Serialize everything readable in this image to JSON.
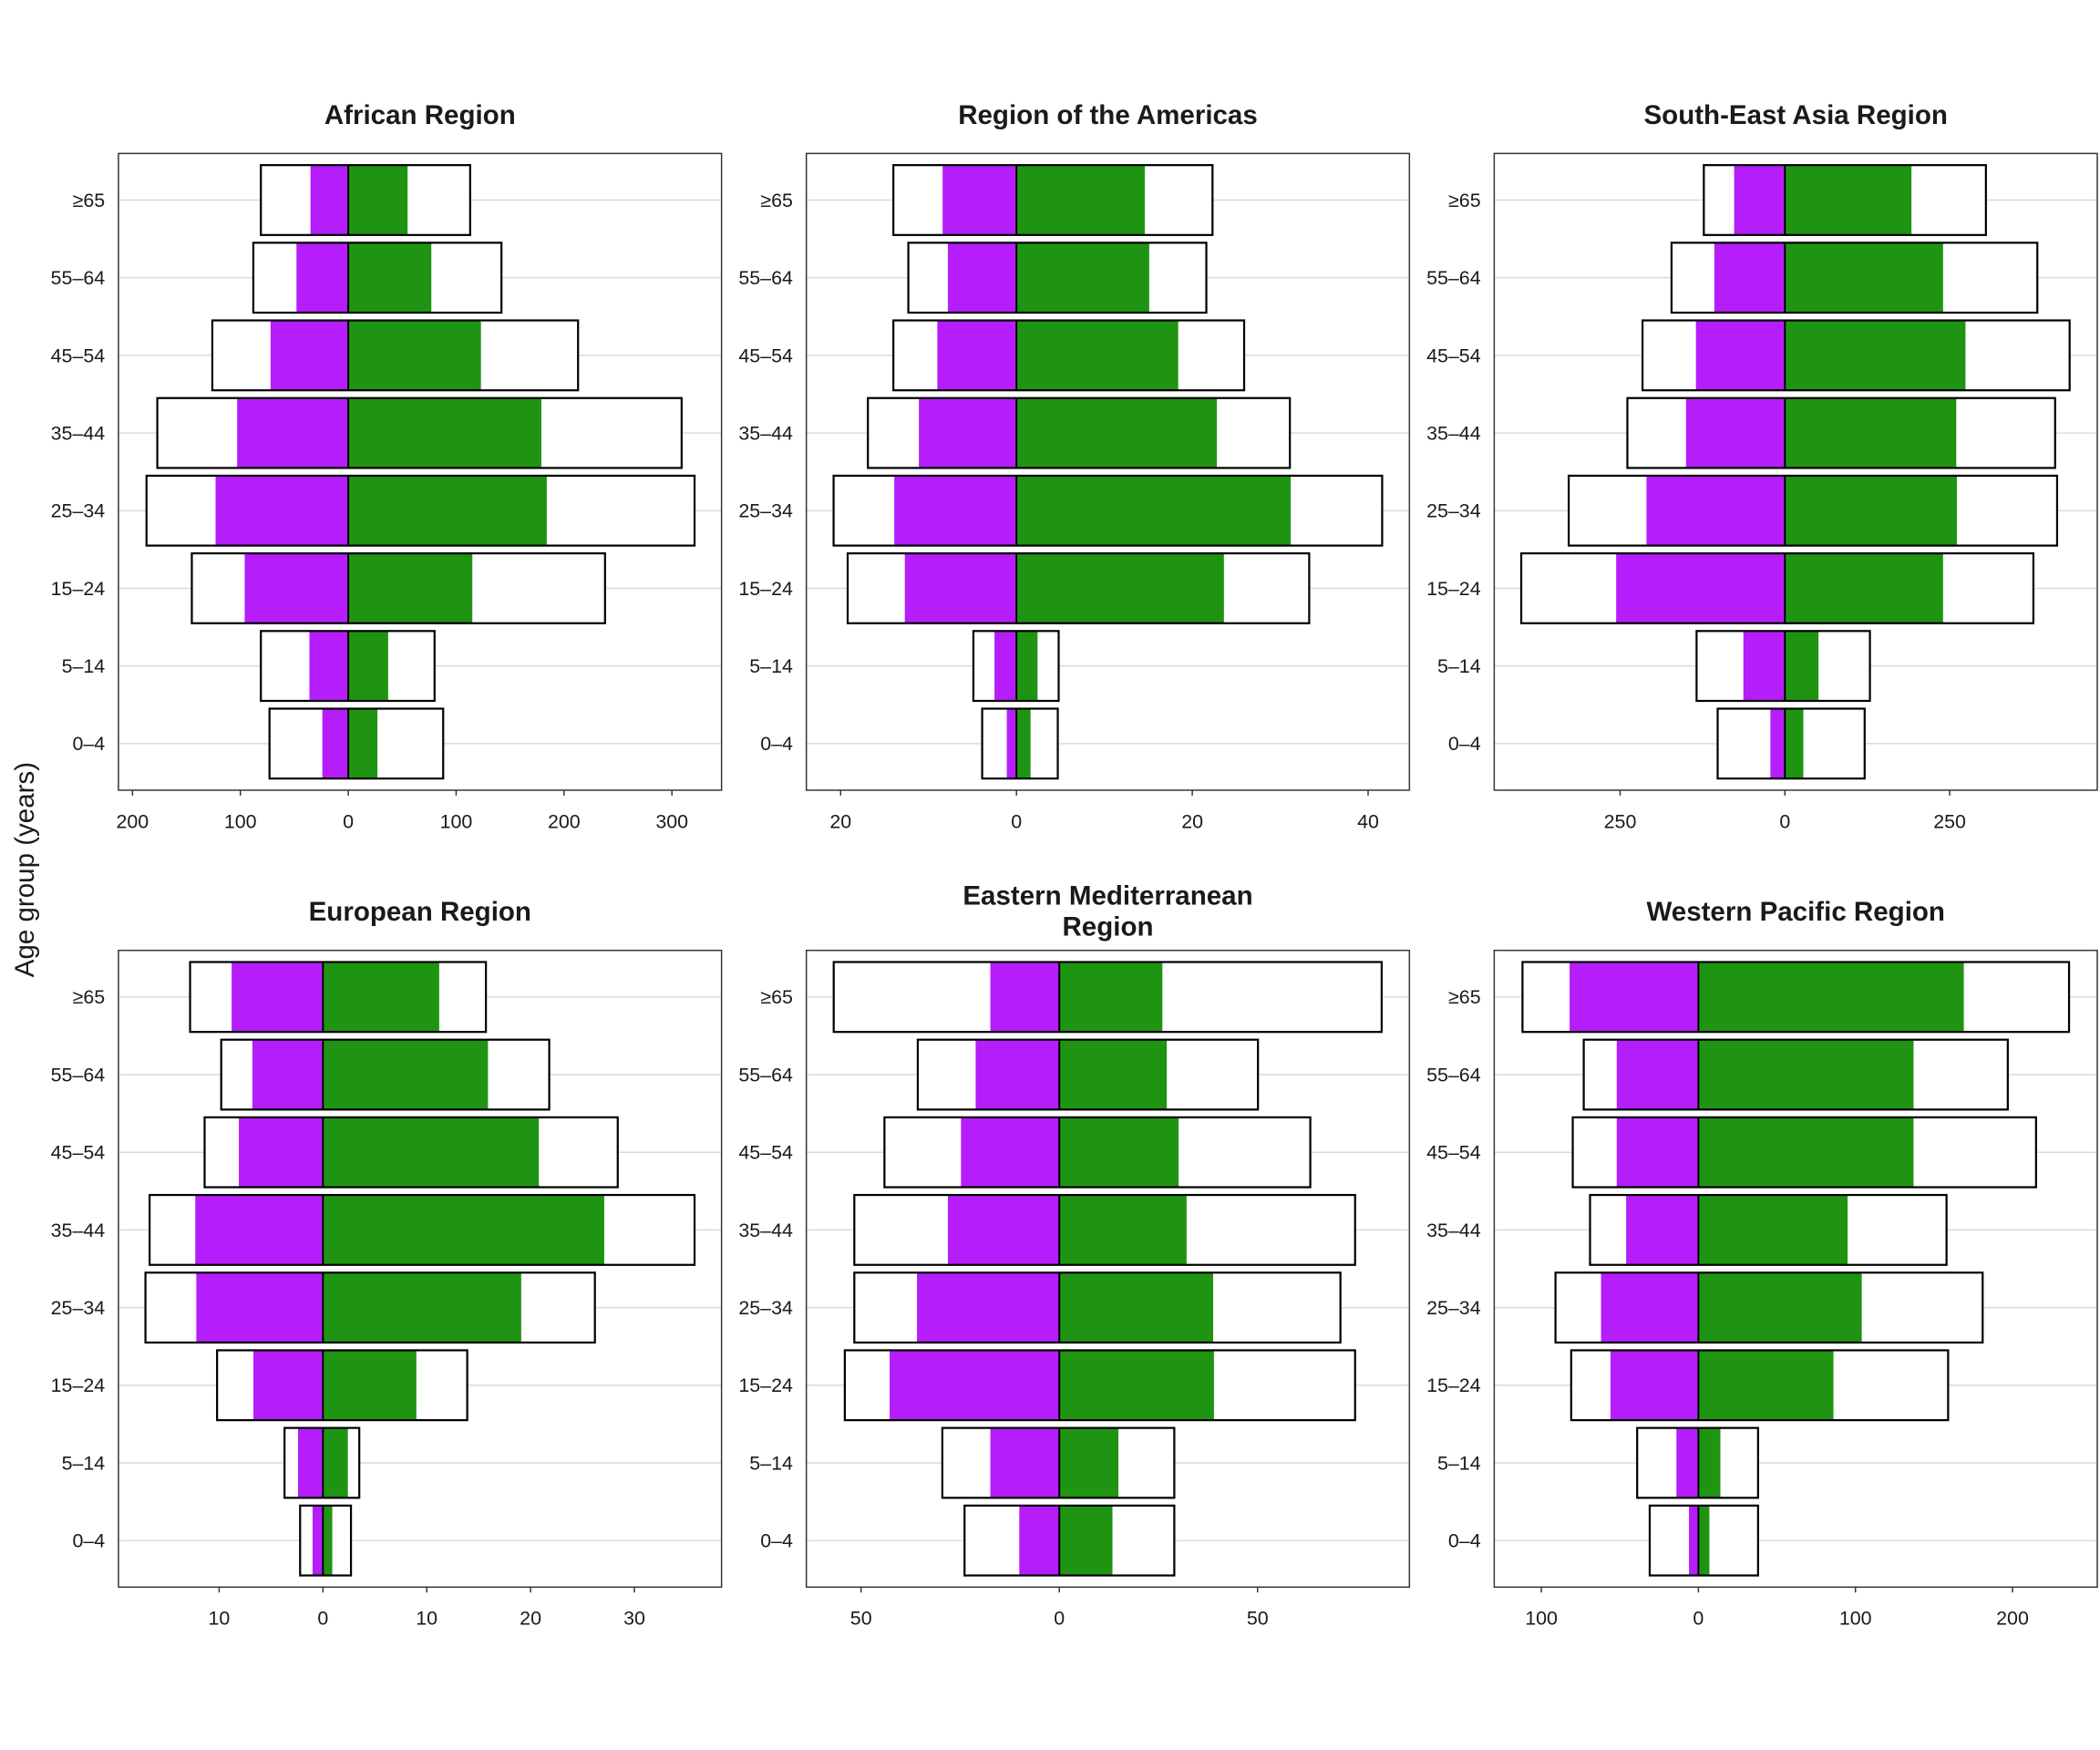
{
  "chart_data": {
    "type": "bar",
    "subtype": "population-pyramid-small-multiples",
    "ylabel": "Age group (years)",
    "categories": [
      "≥65",
      "55–64",
      "45–54",
      "35–44",
      "25–34",
      "15–24",
      "5–14",
      "0–4"
    ],
    "colors": {
      "left_filled": "#b51dfa",
      "right_filled": "#1f9412",
      "outline": "#000000",
      "grid": "#d9d9d9"
    },
    "grid": "horizontal",
    "panels": [
      {
        "title": "African Region",
        "xlim": [
          -213,
          346
        ],
        "ticks": [
          -200,
          -100,
          0,
          100,
          200,
          300
        ],
        "tick_labels": [
          "200",
          "100",
          "0",
          "100",
          "200",
          "300"
        ],
        "left_outline": [
          81,
          88,
          126,
          177,
          187,
          145,
          81,
          73
        ],
        "left_filled": [
          35,
          48,
          72,
          103,
          123,
          96,
          36,
          24
        ],
        "right_filled": [
          55,
          77,
          123,
          179,
          184,
          115,
          37,
          27
        ],
        "right_outline": [
          113,
          142,
          213,
          309,
          321,
          238,
          80,
          88
        ]
      },
      {
        "title": "Region of the Americas",
        "xlim": [
          -23.9,
          44.7
        ],
        "ticks": [
          -20,
          0,
          20,
          40
        ],
        "tick_labels": [
          "20",
          "0",
          "20",
          "40"
        ],
        "left_outline": [
          14.0,
          12.3,
          14.0,
          16.9,
          20.8,
          19.2,
          4.9,
          3.9
        ],
        "left_filled": [
          8.4,
          7.8,
          9.0,
          11.1,
          13.9,
          12.7,
          2.5,
          1.1
        ],
        "right_filled": [
          14.6,
          15.1,
          18.4,
          22.8,
          31.2,
          23.6,
          2.4,
          1.6
        ],
        "right_outline": [
          22.3,
          21.6,
          25.9,
          31.1,
          41.6,
          33.3,
          4.8,
          4.7
        ]
      },
      {
        "title": "South-East Asia Region",
        "xlim": [
          -441,
          474
        ],
        "ticks": [
          -250,
          0,
          250
        ],
        "tick_labels": [
          "250",
          "0",
          "250"
        ],
        "left_outline": [
          123,
          172,
          216,
          239,
          328,
          400,
          134,
          102
        ],
        "left_filled": [
          77,
          107,
          135,
          150,
          210,
          256,
          63,
          22
        ],
        "right_filled": [
          192,
          240,
          274,
          260,
          261,
          240,
          51,
          28
        ],
        "right_outline": [
          305,
          383,
          432,
          410,
          413,
          377,
          129,
          121
        ]
      },
      {
        "title": "European Region",
        "xlim": [
          -19.7,
          38.4
        ],
        "ticks": [
          -10,
          0,
          10,
          20,
          30
        ],
        "tick_labels": [
          "10",
          "0",
          "10",
          "20",
          "30"
        ],
        "left_outline": [
          12.8,
          9.8,
          11.4,
          16.7,
          17.1,
          10.2,
          3.7,
          2.2
        ],
        "left_filled": [
          8.8,
          6.8,
          8.1,
          12.3,
          12.2,
          6.7,
          2.4,
          1.0
        ],
        "right_filled": [
          11.2,
          15.9,
          20.8,
          27.1,
          19.1,
          9.0,
          2.4,
          0.9
        ],
        "right_outline": [
          15.7,
          21.8,
          28.4,
          35.8,
          26.2,
          13.9,
          3.5,
          2.7
        ]
      },
      {
        "title": "Eastern Mediterranean Region",
        "xlim": [
          -63.8,
          88.3
        ],
        "ticks": [
          -50,
          0,
          50
        ],
        "tick_labels": [
          "50",
          "0",
          "50"
        ],
        "left_outline": [
          56.9,
          35.7,
          44.1,
          51.7,
          51.7,
          54.1,
          29.5,
          23.9
        ],
        "left_filled": [
          17.4,
          21.1,
          24.8,
          28.1,
          35.9,
          42.8,
          17.4,
          10.1
        ],
        "right_filled": [
          26.0,
          27.1,
          30.1,
          32.1,
          38.8,
          39.0,
          14.9,
          13.4
        ],
        "right_outline": [
          81.3,
          50.1,
          63.3,
          74.6,
          70.9,
          74.6,
          29.0,
          29.0
        ]
      },
      {
        "title": "Western Pacific Region",
        "xlim": [
          -130,
          254
        ],
        "ticks": [
          -100,
          0,
          100,
          200
        ],
        "tick_labels": [
          "100",
          "0",
          "100",
          "200"
        ],
        "left_outline": [
          112,
          73,
          80,
          69,
          91,
          81,
          39,
          31
        ],
        "left_filled": [
          82,
          52,
          52,
          46,
          62,
          56,
          14,
          6
        ],
        "right_filled": [
          169,
          137,
          137,
          95,
          104,
          86,
          14,
          7
        ],
        "right_outline": [
          236,
          197,
          215,
          158,
          181,
          159,
          38,
          38
        ]
      }
    ]
  }
}
